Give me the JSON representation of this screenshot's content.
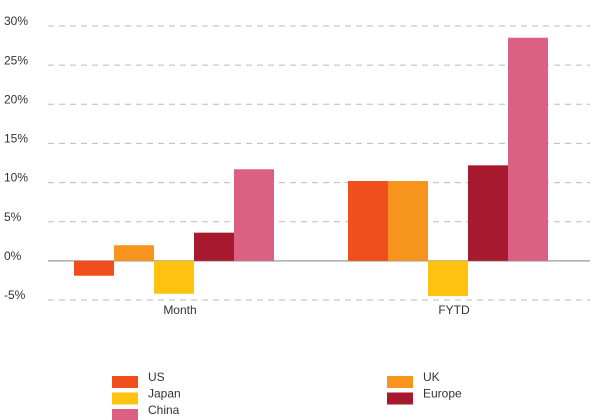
{
  "chart_data": {
    "type": "bar",
    "categories": [
      "Month",
      "FYTD"
    ],
    "series": [
      {
        "name": "US",
        "color": "#f04e1c",
        "values": [
          -1.9,
          10.2
        ]
      },
      {
        "name": "UK",
        "color": "#f7941d",
        "values": [
          2.0,
          10.2
        ]
      },
      {
        "name": "Japan",
        "color": "#ffc20e",
        "values": [
          -4.2,
          -4.5
        ]
      },
      {
        "name": "Europe",
        "color": "#a6192e",
        "values": [
          3.6,
          12.2
        ]
      },
      {
        "name": "China",
        "color": "#db6083",
        "values": [
          11.7,
          28.5
        ]
      }
    ],
    "ylim": [
      -5,
      30
    ],
    "yticks": [
      {
        "value": -5,
        "label": "-5%"
      },
      {
        "value": 0,
        "label": "0%"
      },
      {
        "value": 5,
        "label": "5%"
      },
      {
        "value": 10,
        "label": "10%"
      },
      {
        "value": 15,
        "label": "15%"
      },
      {
        "value": 20,
        "label": "20%"
      },
      {
        "value": 25,
        "label": "25%"
      },
      {
        "value": 30,
        "label": "30%"
      }
    ],
    "grid": true
  }
}
